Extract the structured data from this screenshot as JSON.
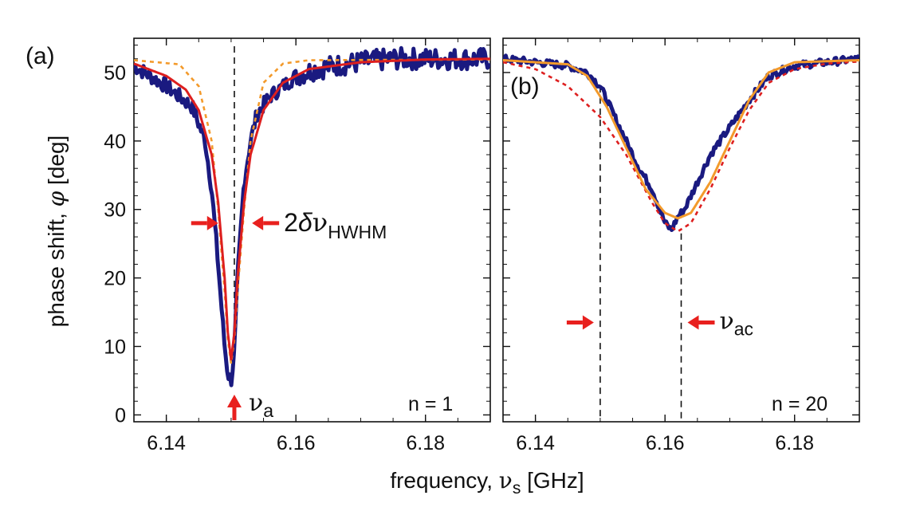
{
  "figure": {
    "xlabel": {
      "pre": "frequency, ",
      "sym": "ν",
      "sub": "s",
      "post": " [GHz]"
    },
    "ylabel": {
      "pre": "phase shift, ",
      "sym": "φ",
      "post": " [deg]"
    }
  },
  "chart_data": [
    {
      "type": "line",
      "panel_label": "(a)",
      "inset_text": "n = 1",
      "xlim": [
        6.135,
        6.19
      ],
      "ylim": [
        -1,
        55
      ],
      "x_ticks": [
        6.14,
        6.16,
        6.18
      ],
      "x_tick_labels": [
        "6.14",
        "6.16",
        "6.18"
      ],
      "y_ticks": [
        0,
        10,
        20,
        30,
        40,
        50
      ],
      "y_tick_labels": [
        "0",
        "10",
        "20",
        "30",
        "40",
        "50"
      ],
      "grid": false,
      "colors": {
        "data": "#1a1a80",
        "solid_fit": "#dd1f1f",
        "dashed_fit": "#f39a2b",
        "arrow": "#e8201e"
      },
      "series": [
        {
          "style": "noisy-data",
          "x": [
            6.135,
            6.1375,
            6.14,
            6.142,
            6.144,
            6.146,
            6.147,
            6.148,
            6.149,
            6.1495,
            6.15,
            6.1505,
            6.151,
            6.152,
            6.153,
            6.154,
            6.156,
            6.158,
            6.16,
            6.163,
            6.166,
            6.17,
            6.175,
            6.18,
            6.185,
            6.19
          ],
          "y": [
            51,
            49.5,
            48,
            46.5,
            45,
            40,
            33,
            22,
            10,
            6,
            5,
            9,
            20,
            34,
            40,
            44,
            46.5,
            48,
            49.5,
            50.5,
            51,
            51.5,
            52,
            52,
            52,
            52
          ]
        },
        {
          "style": "solid-fit",
          "x": [
            6.135,
            6.14,
            6.143,
            6.145,
            6.147,
            6.148,
            6.149,
            6.1495,
            6.15,
            6.1505,
            6.151,
            6.152,
            6.153,
            6.155,
            6.158,
            6.162,
            6.17,
            6.18,
            6.19
          ],
          "y": [
            51.3,
            49.5,
            47.5,
            44.5,
            38,
            31,
            20,
            12,
            8,
            12,
            20,
            31,
            38,
            44.5,
            48.5,
            50.5,
            51.5,
            51.9,
            52
          ]
        },
        {
          "style": "dashed-fit",
          "x": [
            6.135,
            6.142,
            6.145,
            6.147,
            6.148,
            6.149,
            6.1495,
            6.15,
            6.1505,
            6.151,
            6.152,
            6.153,
            6.155,
            6.158,
            6.162,
            6.19
          ],
          "y": [
            51.8,
            51.2,
            48,
            40,
            30,
            18,
            11,
            7.5,
            11,
            18,
            30,
            40,
            48.5,
            51.3,
            51.8,
            51.9
          ]
        }
      ],
      "marker_line_x": 6.1505,
      "annotations": {
        "width_label": {
          "pre": "2",
          "delta": "δ",
          "sym": "ν",
          "sub": "HWHM",
          "y": 28,
          "x_left": 6.149,
          "x_right": 6.152
        },
        "center_label": {
          "sym": "ν",
          "sub": "a",
          "x": 6.1505
        }
      }
    },
    {
      "type": "line",
      "panel_label": "(b)",
      "inset_text": "n = 20",
      "xlim": [
        6.135,
        6.19
      ],
      "ylim": [
        -1,
        55
      ],
      "x_ticks": [
        6.14,
        6.16,
        6.18
      ],
      "x_tick_labels": [
        "6.14",
        "6.16",
        "6.18"
      ],
      "grid": false,
      "colors": {
        "data": "#1a1a80",
        "solid_fit": "#f39a2b",
        "dashed_fit": "#dd1f1f",
        "arrow": "#e8201e"
      },
      "series": [
        {
          "style": "noisy-data",
          "x": [
            6.135,
            6.14,
            6.145,
            6.148,
            6.15,
            6.152,
            6.154,
            6.156,
            6.158,
            6.16,
            6.161,
            6.162,
            6.163,
            6.165,
            6.167,
            6.17,
            6.173,
            6.176,
            6.18,
            6.185,
            6.19
          ],
          "y": [
            52,
            51.5,
            51,
            50,
            48,
            44,
            40,
            36,
            33,
            28,
            27,
            29,
            30,
            34,
            38,
            42,
            46,
            49.5,
            51,
            51.5,
            52
          ]
        },
        {
          "style": "solid-fit",
          "x": [
            6.135,
            6.145,
            6.148,
            6.151,
            6.154,
            6.157,
            6.16,
            6.162,
            6.164,
            6.167,
            6.17,
            6.173,
            6.176,
            6.18,
            6.19
          ],
          "y": [
            51.8,
            51.2,
            49.5,
            45,
            39,
            33,
            29.5,
            28.7,
            29.5,
            34,
            40,
            46,
            50,
            51.5,
            51.8
          ]
        },
        {
          "style": "dashed-fit",
          "x": [
            6.135,
            6.14,
            6.145,
            6.15,
            6.154,
            6.158,
            6.16,
            6.162,
            6.164,
            6.167,
            6.17,
            6.173,
            6.176,
            6.18,
            6.185,
            6.19
          ],
          "y": [
            51.5,
            50.5,
            48,
            43.5,
            38,
            31,
            28,
            26.8,
            28,
            33,
            39,
            44.5,
            48.5,
            50.5,
            51.3,
            51.6
          ]
        }
      ],
      "marker_line_xs": [
        6.15,
        6.1625
      ],
      "annotations": {
        "shift_label": {
          "sym": "ν",
          "sub": "ac",
          "y": 13.5,
          "x_left": 6.15,
          "x_right": 6.1625
        }
      }
    }
  ]
}
